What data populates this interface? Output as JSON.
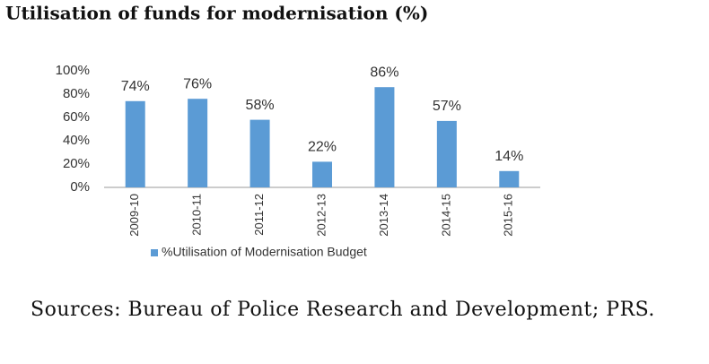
{
  "chart_data": {
    "type": "bar",
    "title": "Utilisation of funds for modernisation (%)",
    "categories": [
      "2009-10",
      "2010-11",
      "2011-12",
      "2012-13",
      "2013-14",
      "2014-15",
      "2015-16"
    ],
    "series": [
      {
        "name": "%Utilisation of Modernisation Budget",
        "color": "#5b9bd5",
        "values": [
          74,
          76,
          58,
          22,
          86,
          57,
          14
        ],
        "value_labels": [
          "74%",
          "76%",
          "58%",
          "22%",
          "86%",
          "57%",
          "14%"
        ]
      }
    ],
    "ylim": [
      0,
      100
    ],
    "yticks": [
      {
        "value": 0,
        "label": "0%"
      },
      {
        "value": 20,
        "label": "20%"
      },
      {
        "value": 40,
        "label": "40%"
      },
      {
        "value": 60,
        "label": "60%"
      },
      {
        "value": 80,
        "label": "80%"
      },
      {
        "value": 100,
        "label": "100%"
      }
    ],
    "grid": false,
    "legend": "bottom",
    "source": "Sources: Bureau of Police Research and Development; PRS."
  }
}
